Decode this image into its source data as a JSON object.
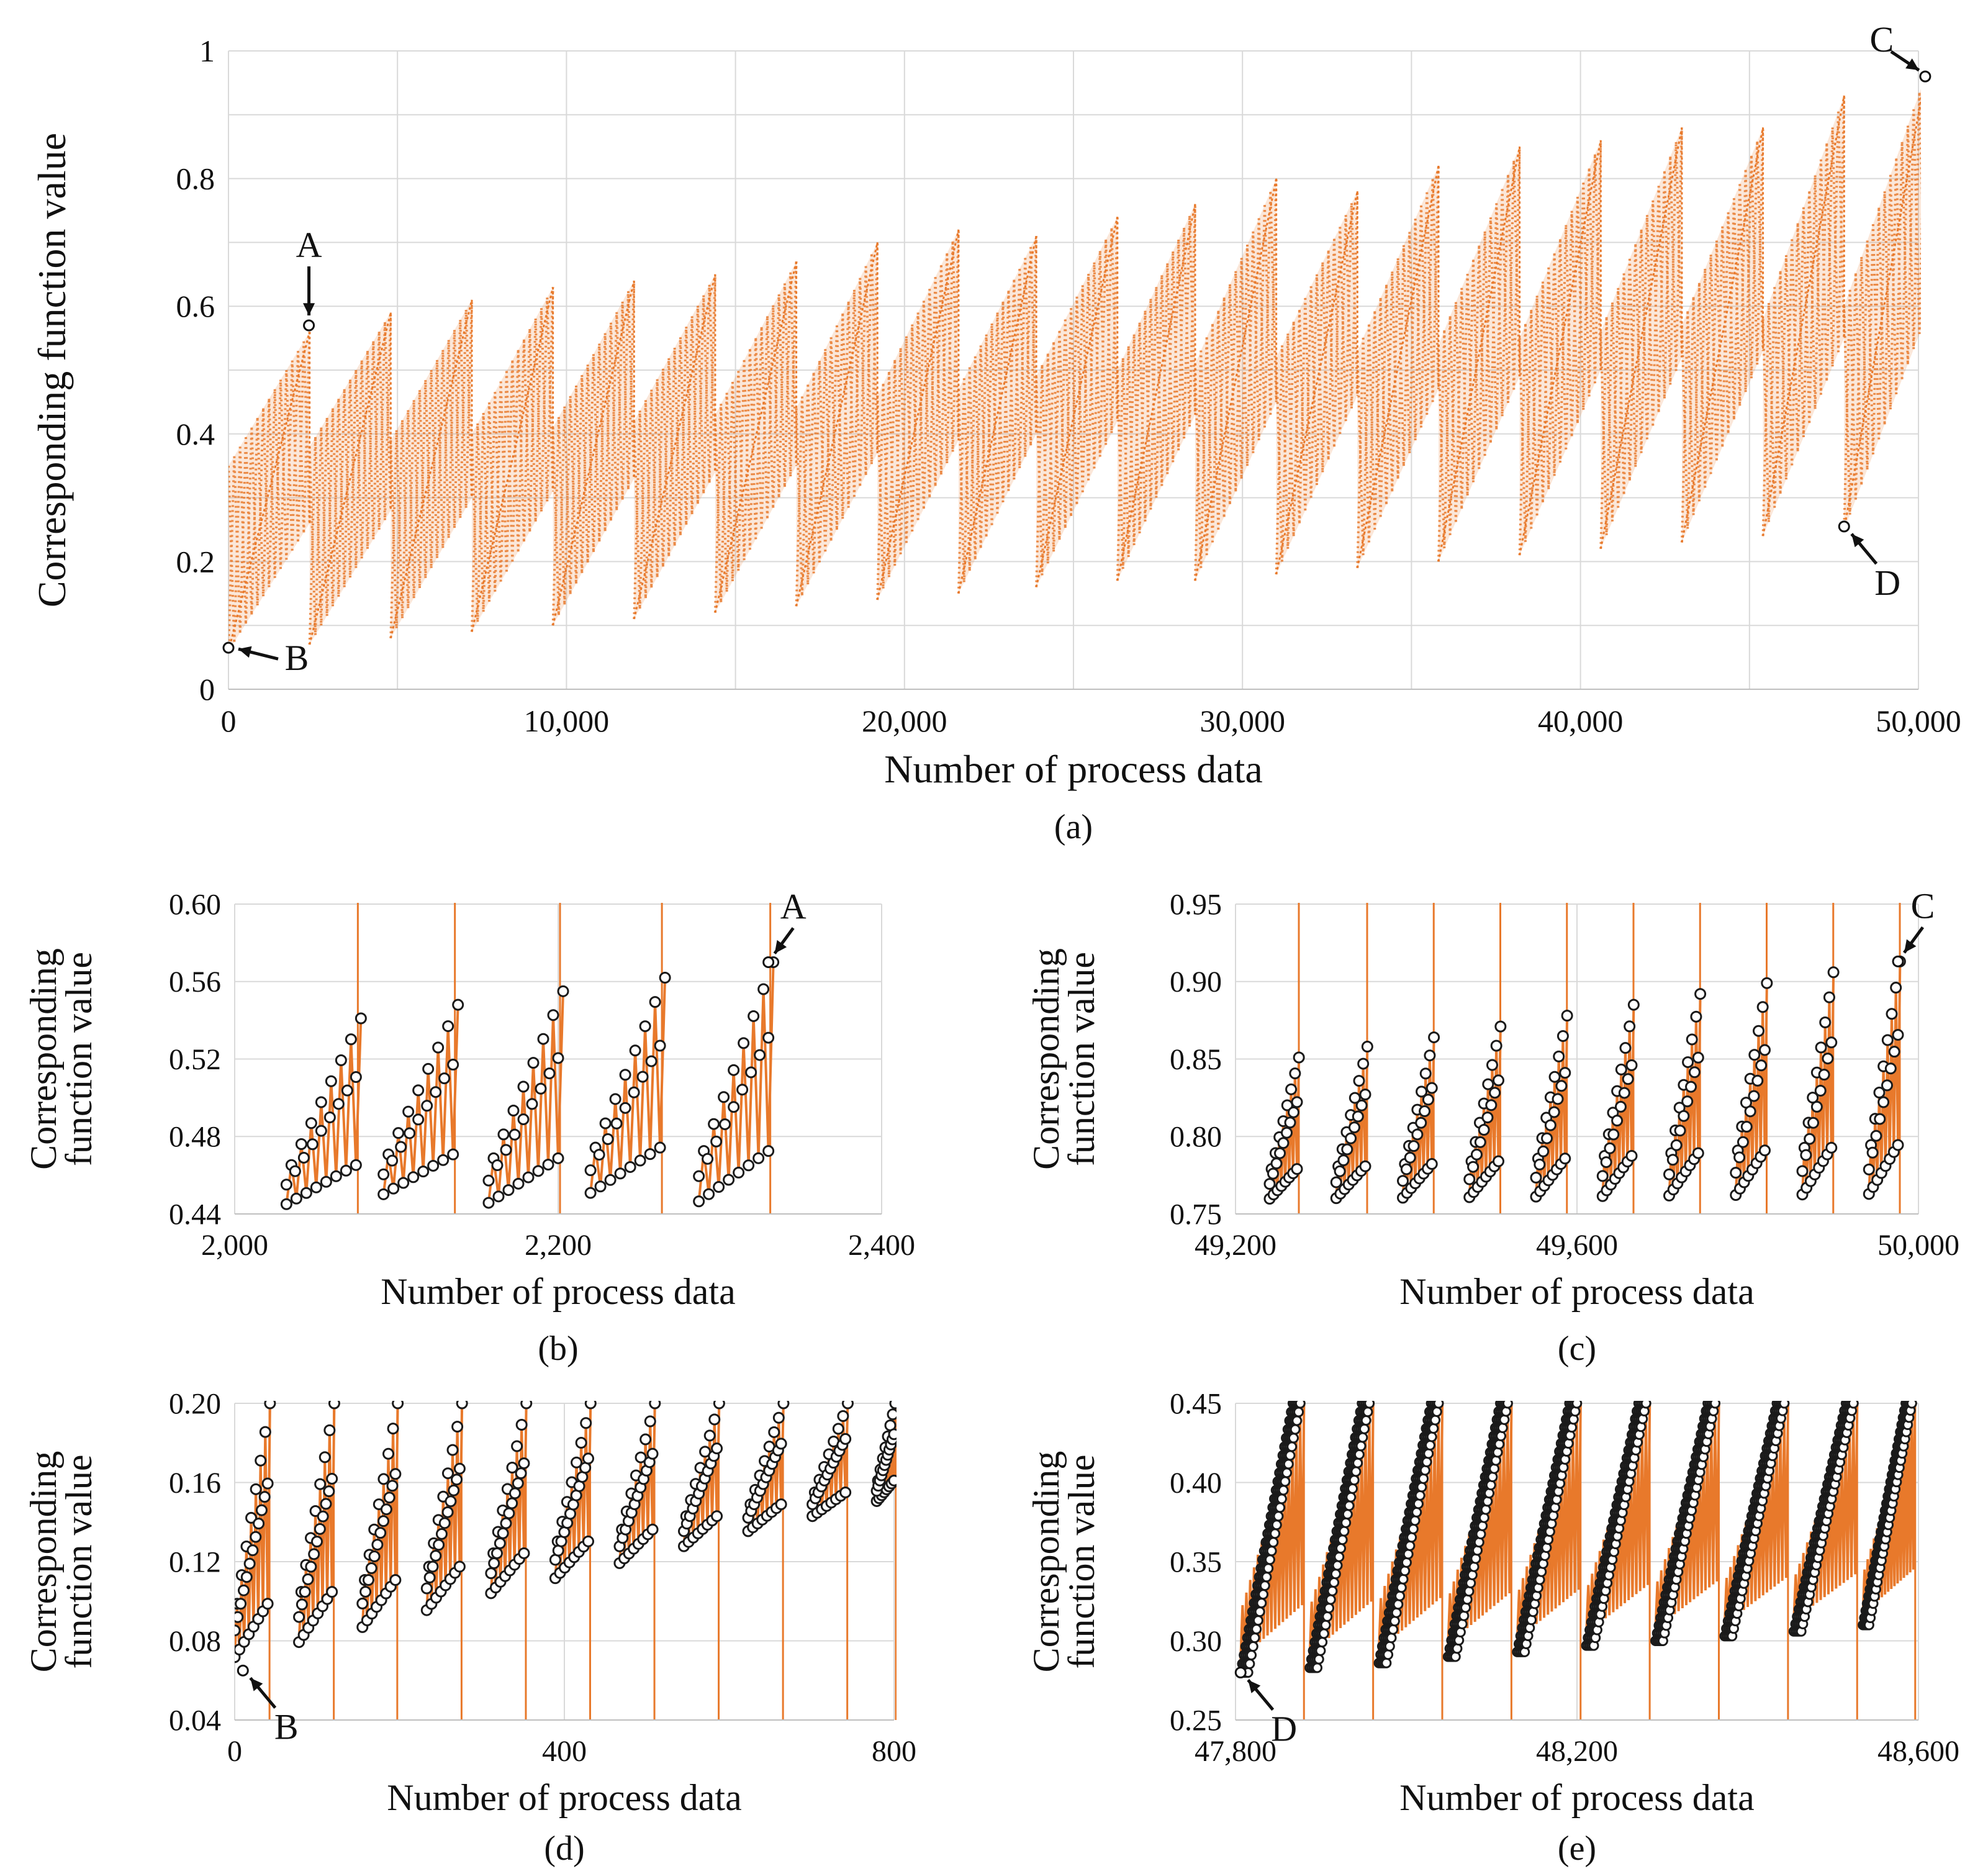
{
  "colors": {
    "series": "#E8792B",
    "marker_fill": "#ffffff",
    "marker_stroke": "#1a1a1a",
    "grid": "#d9d9d9",
    "text": "#111111"
  },
  "chart_data": [
    {
      "id": "a",
      "type": "line",
      "panel_label": "(a)",
      "xlabel": "Number of process data",
      "ylabel": "Corresponding function value",
      "xlim": [
        0,
        50000
      ],
      "ylim": [
        0,
        1
      ],
      "xticks": [
        0,
        10000,
        20000,
        30000,
        40000,
        50000
      ],
      "xtick_labels": [
        "0",
        "10,000",
        "20,000",
        "30,000",
        "40,000",
        "50,000"
      ],
      "yticks": [
        0,
        0.2,
        0.4,
        0.6,
        0.8,
        1
      ],
      "ytick_labels": [
        "0",
        "0.2",
        "0.4",
        "0.6",
        "0.8",
        "1"
      ],
      "series": [
        {
          "name": "Corresponding function value",
          "style": "dense sawtooth envelope",
          "cycles": [
            {
              "x_start": 0,
              "x_end": 2400,
              "low_start": 0.06,
              "high_start": 0.35,
              "low_end": 0.26,
              "high_end": 0.56
            },
            {
              "x_start": 2400,
              "x_end": 4800,
              "low_start": 0.07,
              "high_start": 0.38,
              "low_end": 0.28,
              "high_end": 0.59
            },
            {
              "x_start": 4800,
              "x_end": 7200,
              "low_start": 0.08,
              "high_start": 0.39,
              "low_end": 0.3,
              "high_end": 0.61
            },
            {
              "x_start": 7200,
              "x_end": 9600,
              "low_start": 0.09,
              "high_start": 0.4,
              "low_end": 0.31,
              "high_end": 0.63
            },
            {
              "x_start": 9600,
              "x_end": 12000,
              "low_start": 0.1,
              "high_start": 0.41,
              "low_end": 0.33,
              "high_end": 0.64
            },
            {
              "x_start": 12000,
              "x_end": 14400,
              "low_start": 0.11,
              "high_start": 0.42,
              "low_end": 0.34,
              "high_end": 0.65
            },
            {
              "x_start": 14400,
              "x_end": 16800,
              "low_start": 0.12,
              "high_start": 0.43,
              "low_end": 0.35,
              "high_end": 0.67
            },
            {
              "x_start": 16800,
              "x_end": 19200,
              "low_start": 0.13,
              "high_start": 0.44,
              "low_end": 0.37,
              "high_end": 0.7
            },
            {
              "x_start": 19200,
              "x_end": 21600,
              "low_start": 0.14,
              "high_start": 0.46,
              "low_end": 0.39,
              "high_end": 0.72
            },
            {
              "x_start": 21600,
              "x_end": 23900,
              "low_start": 0.15,
              "high_start": 0.47,
              "low_end": 0.4,
              "high_end": 0.71
            },
            {
              "x_start": 23900,
              "x_end": 26300,
              "low_start": 0.16,
              "high_start": 0.49,
              "low_end": 0.42,
              "high_end": 0.74
            },
            {
              "x_start": 26300,
              "x_end": 28600,
              "low_start": 0.17,
              "high_start": 0.5,
              "low_end": 0.43,
              "high_end": 0.76
            },
            {
              "x_start": 28600,
              "x_end": 31000,
              "low_start": 0.17,
              "high_start": 0.51,
              "low_end": 0.45,
              "high_end": 0.8
            },
            {
              "x_start": 31000,
              "x_end": 33400,
              "low_start": 0.18,
              "high_start": 0.52,
              "low_end": 0.46,
              "high_end": 0.78
            },
            {
              "x_start": 33400,
              "x_end": 35800,
              "low_start": 0.19,
              "high_start": 0.53,
              "low_end": 0.47,
              "high_end": 0.82
            },
            {
              "x_start": 35800,
              "x_end": 38200,
              "low_start": 0.2,
              "high_start": 0.54,
              "low_end": 0.49,
              "high_end": 0.85
            },
            {
              "x_start": 38200,
              "x_end": 40600,
              "low_start": 0.21,
              "high_start": 0.55,
              "low_end": 0.5,
              "high_end": 0.86
            },
            {
              "x_start": 40600,
              "x_end": 43000,
              "low_start": 0.22,
              "high_start": 0.56,
              "low_end": 0.52,
              "high_end": 0.88
            },
            {
              "x_start": 43000,
              "x_end": 45400,
              "low_start": 0.23,
              "high_start": 0.57,
              "low_end": 0.53,
              "high_end": 0.88
            },
            {
              "x_start": 45400,
              "x_end": 47800,
              "low_start": 0.24,
              "high_start": 0.58,
              "low_end": 0.55,
              "high_end": 0.93
            },
            {
              "x_start": 47800,
              "x_end": 50200,
              "low_start": 0.25,
              "high_start": 0.6,
              "low_end": 0.58,
              "high_end": 0.96
            }
          ]
        }
      ],
      "annotations": [
        {
          "label": "A",
          "x": 2380,
          "y": 0.57,
          "arrow": "down"
        },
        {
          "label": "B",
          "x": 0,
          "y": 0.065,
          "arrow": "left"
        },
        {
          "label": "C",
          "x": 50200,
          "y": 0.96,
          "arrow": "up-left"
        },
        {
          "label": "D",
          "x": 47800,
          "y": 0.255,
          "arrow": "up-left"
        }
      ]
    },
    {
      "id": "b",
      "type": "line",
      "panel_label": "(b)",
      "xlabel": "Number of process data",
      "ylabel": "Corresponding function value",
      "xlim": [
        2000,
        2400
      ],
      "ylim": [
        0.44,
        0.6
      ],
      "xticks": [
        2000,
        2200,
        2400
      ],
      "xtick_labels": [
        "2,000",
        "2,200",
        "2,400"
      ],
      "yticks": [
        0.44,
        0.48,
        0.52,
        0.56,
        0.6
      ],
      "ytick_labels": [
        "0.44",
        "0.48",
        "0.52",
        "0.56",
        "0.60"
      ],
      "series": [
        {
          "name": "Corresponding function value",
          "style": "zigzag with circle markers",
          "groups": [
            {
              "x_start": 2032,
              "x_end": 2075,
              "low": 0.44,
              "high": 0.541
            },
            {
              "x_start": 2092,
              "x_end": 2135,
              "low": 0.445,
              "high": 0.548
            },
            {
              "x_start": 2157,
              "x_end": 2200,
              "low": 0.44,
              "high": 0.555
            },
            {
              "x_start": 2220,
              "x_end": 2263,
              "low": 0.445,
              "high": 0.562
            },
            {
              "x_start": 2287,
              "x_end": 2330,
              "low": 0.44,
              "high": 0.57
            }
          ]
        }
      ],
      "annotations": [
        {
          "label": "A",
          "x": 2330,
          "y": 0.57,
          "arrow": "down-left"
        }
      ]
    },
    {
      "id": "c",
      "type": "line",
      "panel_label": "(c)",
      "xlabel": "Number of process data",
      "ylabel": "Corresponding function value",
      "xlim": [
        49200,
        50000
      ],
      "ylim": [
        0.75,
        0.95
      ],
      "xticks": [
        49200,
        49600,
        50000
      ],
      "xtick_labels": [
        "49,200",
        "49,600",
        "50,000"
      ],
      "yticks": [
        0.75,
        0.8,
        0.85,
        0.9,
        0.95
      ],
      "ytick_labels": [
        "0.75",
        "0.80",
        "0.85",
        "0.90",
        "0.95"
      ],
      "series": [
        {
          "name": "Corresponding function value",
          "style": "zigzag with circle markers",
          "groups": [
            {
              "x_start": 49240,
              "x_end": 49272,
              "low": 0.755,
              "high": 0.851
            },
            {
              "x_start": 49318,
              "x_end": 49352,
              "low": 0.755,
              "high": 0.858
            },
            {
              "x_start": 49396,
              "x_end": 49430,
              "low": 0.755,
              "high": 0.864
            },
            {
              "x_start": 49474,
              "x_end": 49508,
              "low": 0.755,
              "high": 0.871
            },
            {
              "x_start": 49552,
              "x_end": 49586,
              "low": 0.755,
              "high": 0.878
            },
            {
              "x_start": 49630,
              "x_end": 49664,
              "low": 0.755,
              "high": 0.885
            },
            {
              "x_start": 49708,
              "x_end": 49742,
              "low": 0.755,
              "high": 0.892
            },
            {
              "x_start": 49786,
              "x_end": 49820,
              "low": 0.755,
              "high": 0.899
            },
            {
              "x_start": 49864,
              "x_end": 49898,
              "low": 0.755,
              "high": 0.906
            },
            {
              "x_start": 49942,
              "x_end": 49976,
              "low": 0.755,
              "high": 0.913
            }
          ]
        }
      ],
      "annotations": [
        {
          "label": "C",
          "x": 49976,
          "y": 0.913,
          "arrow": "down-left"
        }
      ]
    },
    {
      "id": "d",
      "type": "line",
      "panel_label": "(d)",
      "xlabel": "Number of process data",
      "ylabel": "Corresponding function value",
      "xlim": [
        0,
        800
      ],
      "ylim": [
        0.04,
        0.2
      ],
      "xticks": [
        0,
        400,
        800
      ],
      "xtick_labels": [
        "0",
        "400",
        "800"
      ],
      "yticks": [
        0.04,
        0.08,
        0.12,
        0.16,
        0.2
      ],
      "ytick_labels": [
        "0.04",
        "0.08",
        "0.12",
        "0.16",
        "0.20"
      ],
      "series": [
        {
          "name": "Corresponding function value",
          "style": "zigzag with circle markers",
          "groups": [
            {
              "x_start": 0,
              "x_end": 40,
              "low": 0.065,
              "high": 0.2
            },
            {
              "x_start": 78,
              "x_end": 118,
              "low": 0.073,
              "high": 0.2
            },
            {
              "x_start": 155,
              "x_end": 195,
              "low": 0.081,
              "high": 0.2
            },
            {
              "x_start": 233,
              "x_end": 273,
              "low": 0.09,
              "high": 0.2
            },
            {
              "x_start": 311,
              "x_end": 351,
              "low": 0.099,
              "high": 0.2
            },
            {
              "x_start": 389,
              "x_end": 429,
              "low": 0.107,
              "high": 0.2
            },
            {
              "x_start": 467,
              "x_end": 507,
              "low": 0.115,
              "high": 0.2
            },
            {
              "x_start": 545,
              "x_end": 585,
              "low": 0.124,
              "high": 0.2
            },
            {
              "x_start": 623,
              "x_end": 663,
              "low": 0.132,
              "high": 0.2
            },
            {
              "x_start": 701,
              "x_end": 741,
              "low": 0.14,
              "high": 0.2
            },
            {
              "x_start": 779,
              "x_end": 800,
              "low": 0.148,
              "high": 0.2
            }
          ]
        }
      ],
      "annotations": [
        {
          "label": "B",
          "x": 10,
          "y": 0.065,
          "arrow": "up-left"
        }
      ]
    },
    {
      "id": "e",
      "type": "line",
      "panel_label": "(e)",
      "xlabel": "Number of process data",
      "ylabel": "Corresponding function value",
      "xlim": [
        47800,
        48600
      ],
      "ylim": [
        0.25,
        0.45
      ],
      "xticks": [
        47800,
        48200,
        48600
      ],
      "xtick_labels": [
        "47,800",
        "48,200",
        "48,600"
      ],
      "yticks": [
        0.25,
        0.3,
        0.35,
        0.4,
        0.45
      ],
      "ytick_labels": [
        "0.25",
        "0.30",
        "0.35",
        "0.40",
        "0.45"
      ],
      "series": [
        {
          "name": "Corresponding function value",
          "style": "zigzag with circle markers",
          "groups": [
            {
              "x_start": 47806,
              "x_end": 47878,
              "low": 0.28,
              "high": 0.45
            },
            {
              "x_start": 47887,
              "x_end": 47959,
              "low": 0.283,
              "high": 0.45
            },
            {
              "x_start": 47968,
              "x_end": 48040,
              "low": 0.286,
              "high": 0.45
            },
            {
              "x_start": 48049,
              "x_end": 48121,
              "low": 0.29,
              "high": 0.45
            },
            {
              "x_start": 48130,
              "x_end": 48202,
              "low": 0.293,
              "high": 0.45
            },
            {
              "x_start": 48211,
              "x_end": 48283,
              "low": 0.297,
              "high": 0.45
            },
            {
              "x_start": 48292,
              "x_end": 48364,
              "low": 0.3,
              "high": 0.45
            },
            {
              "x_start": 48373,
              "x_end": 48445,
              "low": 0.303,
              "high": 0.45
            },
            {
              "x_start": 48454,
              "x_end": 48526,
              "low": 0.306,
              "high": 0.45
            },
            {
              "x_start": 48535,
              "x_end": 48594,
              "low": 0.31,
              "high": 0.45
            }
          ]
        }
      ],
      "annotations": [
        {
          "label": "D",
          "x": 47806,
          "y": 0.28,
          "arrow": "up-left"
        }
      ]
    }
  ]
}
